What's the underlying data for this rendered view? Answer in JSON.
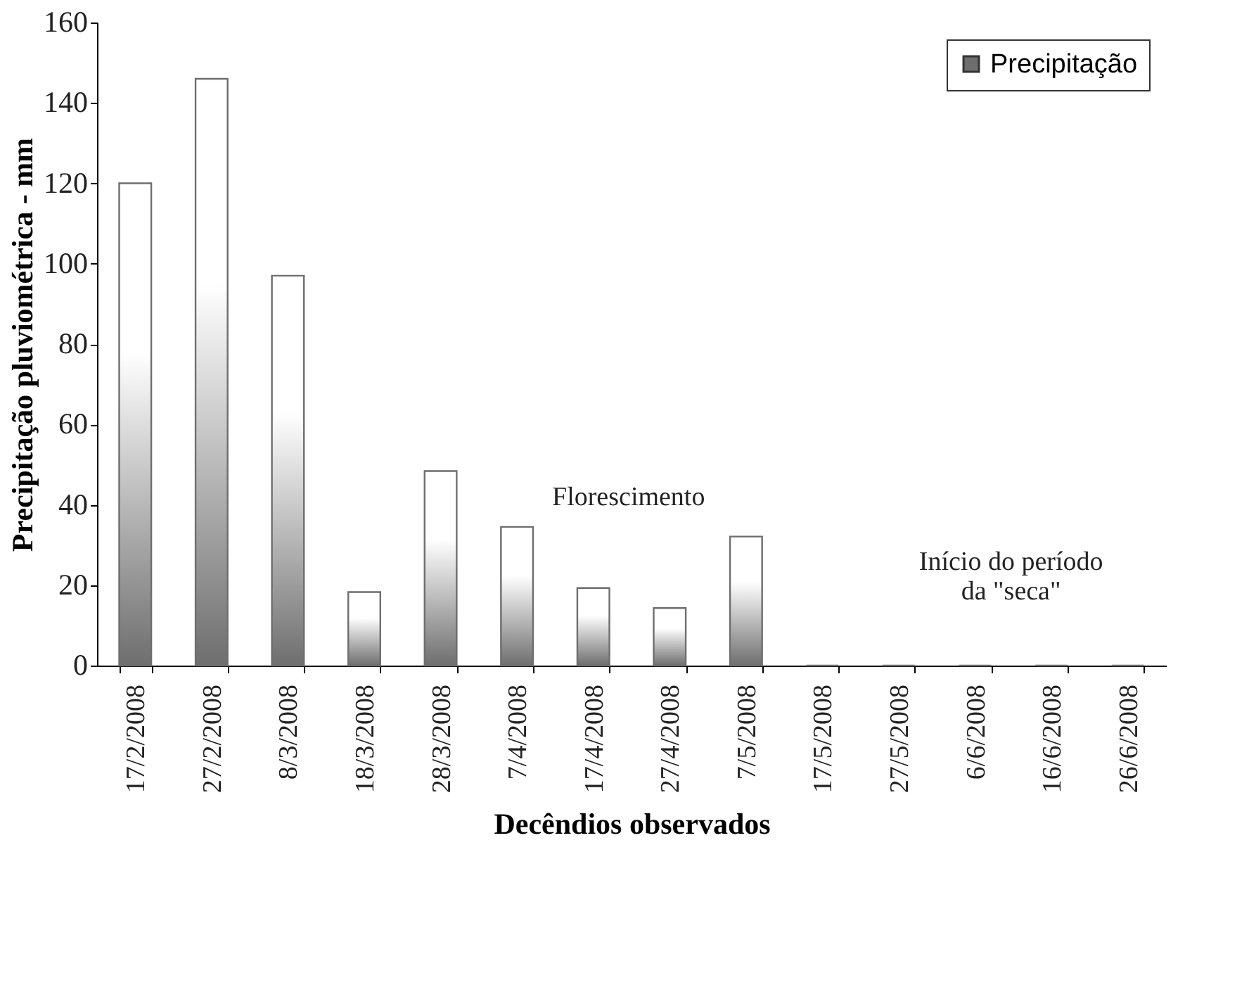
{
  "chart_data": {
    "type": "bar",
    "xlabel": "Decêndios observados",
    "ylabel": "Precipitação pluviométrica - mm",
    "categories": [
      "17/2/2008",
      "27/2/2008",
      "8/3/2008",
      "18/3/2008",
      "28/3/2008",
      "7/4/2008",
      "17/4/2008",
      "27/4/2008",
      "7/5/2008",
      "17/5/2008",
      "27/5/2008",
      "6/6/2008",
      "16/6/2008",
      "26/6/2008"
    ],
    "series": [
      {
        "name": "Precipitação",
        "color": "#6e6e6e",
        "values": [
          120,
          146,
          97,
          18.3,
          48.4,
          34.5,
          19.3,
          14.3,
          32.1,
          0,
          0,
          0,
          0,
          0
        ]
      }
    ],
    "ylim": [
      0,
      160
    ],
    "yticks": [
      0,
      20,
      40,
      60,
      80,
      100,
      120,
      140,
      160
    ],
    "grid": false,
    "legend": "top right",
    "annotations": [
      {
        "text": "Florescimento",
        "x": "17/4/2008",
        "y": 21
      },
      "Início do período\nda \"seca\""
    ]
  }
}
